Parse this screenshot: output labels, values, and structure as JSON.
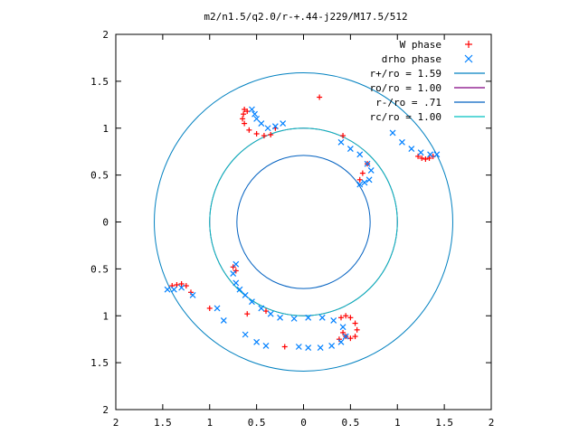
{
  "chart_data": {
    "type": "scatter",
    "title": "m2/n1.5/q2.0/r-+.44-j229/M17.5/512",
    "xlabel": "",
    "ylabel": "",
    "xlim": [
      -2,
      2
    ],
    "ylim": [
      -2,
      2
    ],
    "x_ticks": [
      "2",
      "1.5",
      "1",
      "0.5",
      "0",
      "0.5",
      "1",
      "1.5",
      "2"
    ],
    "y_ticks": [
      "2",
      "1.5",
      "1",
      "0.5",
      "0",
      "0.5",
      "1",
      "1.5",
      "2"
    ],
    "legend_position": "top-right",
    "grid": false,
    "series": [
      {
        "name": "W phase",
        "marker": "plus",
        "color": "#ff0000",
        "points": [
          [
            -0.63,
            1.2
          ],
          [
            -0.64,
            1.15
          ],
          [
            -0.65,
            1.1
          ],
          [
            -0.63,
            1.05
          ],
          [
            -0.58,
            0.98
          ],
          [
            -0.5,
            0.94
          ],
          [
            -0.42,
            0.92
          ],
          [
            -0.35,
            0.93
          ],
          [
            -0.3,
            1.0
          ],
          [
            -0.6,
            1.18
          ],
          [
            0.17,
            1.33
          ],
          [
            0.42,
            0.92
          ],
          [
            1.22,
            0.7
          ],
          [
            1.26,
            0.68
          ],
          [
            1.3,
            0.67
          ],
          [
            1.34,
            0.68
          ],
          [
            1.38,
            0.7
          ],
          [
            0.6,
            0.45
          ],
          [
            0.63,
            0.52
          ],
          [
            0.68,
            0.62
          ],
          [
            -1.4,
            -0.68
          ],
          [
            -1.35,
            -0.67
          ],
          [
            -1.3,
            -0.66
          ],
          [
            -1.25,
            -0.68
          ],
          [
            -1.2,
            -0.75
          ],
          [
            -1.0,
            -0.92
          ],
          [
            -0.75,
            -0.48
          ],
          [
            -0.72,
            -0.52
          ],
          [
            0.4,
            -1.02
          ],
          [
            0.45,
            -1.0
          ],
          [
            0.5,
            -1.02
          ],
          [
            0.55,
            -1.08
          ],
          [
            0.57,
            -1.15
          ],
          [
            0.55,
            -1.22
          ],
          [
            0.5,
            -1.24
          ],
          [
            0.45,
            -1.22
          ],
          [
            0.42,
            -1.18
          ],
          [
            0.38,
            -1.25
          ],
          [
            -0.2,
            -1.33
          ],
          [
            -0.6,
            -0.98
          ],
          [
            -0.4,
            -0.95
          ]
        ]
      },
      {
        "name": "drho phase",
        "marker": "x",
        "color": "#0080ff",
        "points": [
          [
            -0.55,
            1.2
          ],
          [
            -0.52,
            1.15
          ],
          [
            -0.5,
            1.1
          ],
          [
            -0.45,
            1.05
          ],
          [
            -0.38,
            1.0
          ],
          [
            -0.3,
            1.02
          ],
          [
            -0.22,
            1.05
          ],
          [
            0.4,
            0.85
          ],
          [
            0.5,
            0.78
          ],
          [
            0.6,
            0.72
          ],
          [
            0.68,
            0.62
          ],
          [
            0.72,
            0.55
          ],
          [
            0.7,
            0.45
          ],
          [
            0.65,
            0.42
          ],
          [
            0.6,
            0.4
          ],
          [
            0.95,
            0.95
          ],
          [
            1.05,
            0.85
          ],
          [
            1.15,
            0.78
          ],
          [
            1.25,
            0.74
          ],
          [
            1.35,
            0.72
          ],
          [
            1.42,
            0.72
          ],
          [
            -1.45,
            -0.72
          ],
          [
            -1.38,
            -0.72
          ],
          [
            -1.3,
            -0.7
          ],
          [
            -1.18,
            -0.78
          ],
          [
            -0.92,
            -0.92
          ],
          [
            -0.85,
            -1.05
          ],
          [
            -0.62,
            -1.2
          ],
          [
            -0.5,
            -1.28
          ],
          [
            -0.4,
            -1.32
          ],
          [
            -0.72,
            -0.45
          ],
          [
            -0.75,
            -0.55
          ],
          [
            -0.72,
            -0.65
          ],
          [
            -0.68,
            -0.72
          ],
          [
            -0.62,
            -0.78
          ],
          [
            -0.55,
            -0.85
          ],
          [
            -0.45,
            -0.92
          ],
          [
            -0.35,
            -0.98
          ],
          [
            -0.25,
            -1.02
          ],
          [
            -0.1,
            -1.03
          ],
          [
            0.05,
            -1.02
          ],
          [
            0.2,
            -1.02
          ],
          [
            0.32,
            -1.05
          ],
          [
            0.42,
            -1.12
          ],
          [
            0.45,
            -1.22
          ],
          [
            0.4,
            -1.28
          ],
          [
            0.3,
            -1.32
          ],
          [
            0.18,
            -1.34
          ],
          [
            0.05,
            -1.34
          ],
          [
            -0.05,
            -1.33
          ]
        ]
      },
      {
        "name": "r+/ro = 1.59",
        "type": "circle",
        "radius": 1.59,
        "color": "#0080c0"
      },
      {
        "name": "ro/ro = 1.00",
        "type": "circle",
        "radius": 1.0,
        "color": "#800080"
      },
      {
        "name": "r-/ro = .71",
        "type": "circle",
        "radius": 0.71,
        "color": "#0060c0"
      },
      {
        "name": "rc/ro = 1.00",
        "type": "circle",
        "radius": 1.0,
        "color": "#00c0c0"
      }
    ]
  }
}
